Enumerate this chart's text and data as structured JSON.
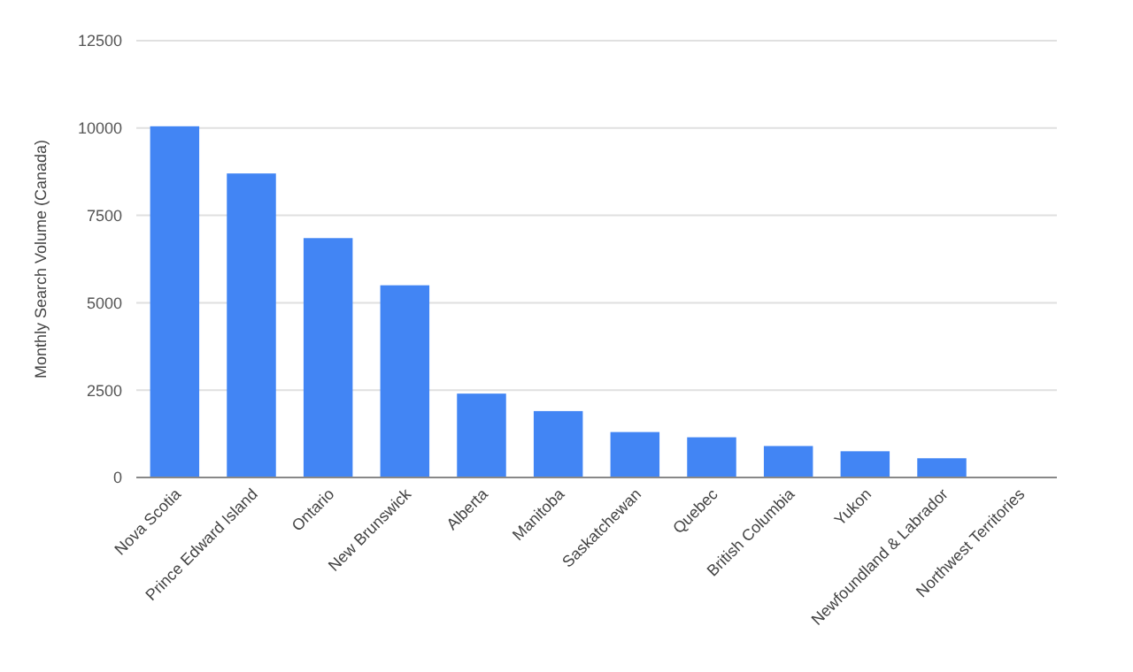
{
  "chart_data": {
    "type": "bar",
    "ylabel": "Monthly Search Volume (Canada)",
    "categories": [
      "Nova Scotia",
      "Prince Edward Island",
      "Ontario",
      "New Brunswick",
      "Alberta",
      "Manitoba",
      "Saskatchewan",
      "Quebec",
      "British Columbia",
      "Yukon",
      "Newfoundland & Labrador",
      "Northwest Territories"
    ],
    "values": [
      10050,
      8700,
      6850,
      5500,
      2400,
      1900,
      1300,
      1150,
      900,
      750,
      550,
      0
    ],
    "color": "#4285f4",
    "ylim": [
      0,
      12500
    ],
    "yticks": [
      0,
      2500,
      5000,
      7500,
      10000,
      12500
    ],
    "grid": "y"
  }
}
